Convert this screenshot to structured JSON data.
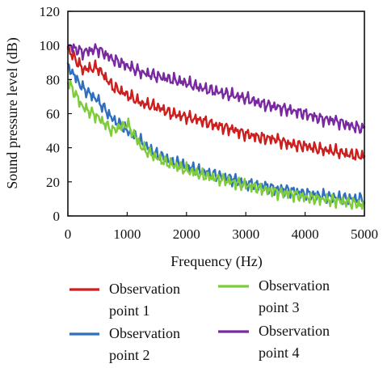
{
  "chart_data": {
    "type": "line",
    "xlabel": "Frequency (Hz)",
    "ylabel": "Sound pressure level (dB)",
    "xlim": [
      0,
      5000
    ],
    "ylim": [
      0,
      120
    ],
    "xticks": [
      0,
      1000,
      2000,
      3000,
      4000,
      5000
    ],
    "yticks": [
      0,
      20,
      40,
      60,
      80,
      100,
      120
    ],
    "x": [
      0,
      250,
      500,
      750,
      1000,
      1250,
      1500,
      1750,
      2000,
      2250,
      2500,
      2750,
      3000,
      3250,
      3500,
      3750,
      4000,
      4250,
      4500,
      4750,
      5000
    ],
    "legend_position": "bottom",
    "series": [
      {
        "name": "Observation point 1",
        "color": "#cc1f1f",
        "values": [
          98,
          86,
          87,
          76,
          71,
          66,
          64,
          60,
          58,
          56,
          53,
          51,
          48,
          46,
          45,
          42,
          41,
          39,
          38,
          36,
          35
        ]
      },
      {
        "name": "Observation point 2",
        "color": "#2f6fbe",
        "values": [
          88,
          75,
          68,
          57,
          50,
          43,
          36,
          32,
          29,
          26,
          24,
          22,
          19,
          18,
          16,
          15,
          13,
          12,
          11,
          10,
          10
        ]
      },
      {
        "name": "Observation point 3",
        "color": "#7fcc3a",
        "values": [
          79,
          64,
          58,
          50,
          54,
          40,
          34,
          30,
          27,
          24,
          22,
          20,
          18,
          16,
          14,
          13,
          11,
          10,
          9,
          8,
          6
        ]
      },
      {
        "name": "Observation point 4",
        "color": "#7a2aa0",
        "values": [
          100,
          96,
          98,
          92,
          88,
          84,
          82,
          80,
          78,
          75,
          73,
          71,
          69,
          66,
          64,
          62,
          60,
          57,
          56,
          53,
          51
        ]
      }
    ],
    "legend_items": [
      {
        "line1": "Observation",
        "line2": "point 1"
      },
      {
        "line1": "Observation",
        "line2": "point 2"
      },
      {
        "line1": "Observation",
        "line2": "point 3"
      },
      {
        "line1": "Observation",
        "line2": "point 4"
      }
    ]
  }
}
